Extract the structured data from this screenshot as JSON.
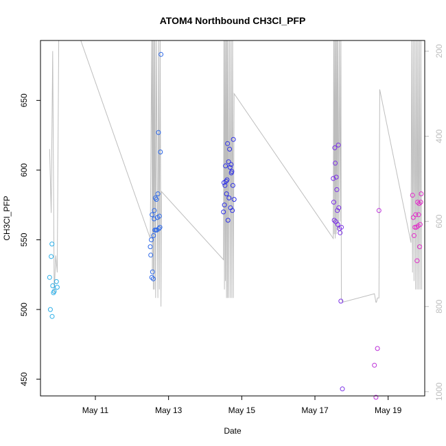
{
  "chart_data": {
    "type": "scatter",
    "title": "ATOM4 Northbound CH3Cl_PFP",
    "xlabel": "Date",
    "ylabel": "CH3Cl_PFP",
    "xlim": [
      "2016-05-09T12:00",
      "2016-05-20T00:00"
    ],
    "ylim": [
      438,
      693
    ],
    "x_ticks": [
      {
        "date": "2016-05-11",
        "label": "May 11"
      },
      {
        "date": "2016-05-13",
        "label": "May 13"
      },
      {
        "date": "2016-05-15",
        "label": "May 15"
      },
      {
        "date": "2016-05-17",
        "label": "May 17"
      },
      {
        "date": "2016-05-19",
        "label": "May 19"
      }
    ],
    "y_ticks": [
      450,
      500,
      550,
      600,
      650
    ],
    "y2_label": "",
    "y2_lim": [
      1010,
      175
    ],
    "y2_ticks": [
      200,
      400,
      600,
      800,
      1000
    ],
    "grid": false,
    "legend": "none",
    "colors": {
      "axis": "#000000",
      "altitude_line": "#bdbdbd",
      "right_axis": "#bdbdbd",
      "series_palette": [
        "#29aee8",
        "#2c68e8",
        "#2c2ee6",
        "#7a2ee6",
        "#bb2ed8",
        "#e02cc8"
      ]
    },
    "series": [
      {
        "color": "#29aee8",
        "points": [
          [
            "2016-05-09T18:00",
            523
          ],
          [
            "2016-05-09T18:30",
            500
          ],
          [
            "2016-05-09T19:00",
            538
          ],
          [
            "2016-05-09T19:30",
            547
          ],
          [
            "2016-05-09T19:40",
            495
          ],
          [
            "2016-05-09T20:00",
            517
          ],
          [
            "2016-05-09T20:30",
            512
          ],
          [
            "2016-05-09T21:00",
            513
          ],
          [
            "2016-05-09T22:30",
            520
          ],
          [
            "2016-05-09T23:00",
            516
          ]
        ]
      },
      {
        "color": "#2c68e8",
        "points": [
          [
            "2016-05-12T12:00",
            545
          ],
          [
            "2016-05-12T12:20",
            539
          ],
          [
            "2016-05-12T12:40",
            550
          ],
          [
            "2016-05-12T13:00",
            523
          ],
          [
            "2016-05-12T13:10",
            568
          ],
          [
            "2016-05-12T13:30",
            527
          ],
          [
            "2016-05-12T14:00",
            522
          ],
          [
            "2016-05-12T14:10",
            553
          ],
          [
            "2016-05-12T14:30",
            565
          ],
          [
            "2016-05-12T14:40",
            571
          ],
          [
            "2016-05-12T15:00",
            557
          ],
          [
            "2016-05-12T15:20",
            580
          ],
          [
            "2016-05-12T15:40",
            557
          ],
          [
            "2016-05-12T16:00",
            579
          ],
          [
            "2016-05-12T16:20",
            557
          ],
          [
            "2016-05-12T16:40",
            566
          ],
          [
            "2016-05-12T17:00",
            583
          ],
          [
            "2016-05-12T17:20",
            627
          ],
          [
            "2016-05-12T17:40",
            558
          ],
          [
            "2016-05-12T18:00",
            567
          ],
          [
            "2016-05-12T18:20",
            559
          ],
          [
            "2016-05-12T18:40",
            613
          ],
          [
            "2016-05-12T19:00",
            683
          ]
        ]
      },
      {
        "color": "#2c2ee6",
        "points": [
          [
            "2016-05-14T12:00",
            570
          ],
          [
            "2016-05-14T12:20",
            591
          ],
          [
            "2016-05-14T12:40",
            575
          ],
          [
            "2016-05-14T13:00",
            589
          ],
          [
            "2016-05-14T13:20",
            603
          ],
          [
            "2016-05-14T13:40",
            592
          ],
          [
            "2016-05-14T14:00",
            583
          ],
          [
            "2016-05-14T14:20",
            593
          ],
          [
            "2016-05-14T14:40",
            619
          ],
          [
            "2016-05-14T15:00",
            564
          ],
          [
            "2016-05-14T15:20",
            606
          ],
          [
            "2016-05-14T15:40",
            580
          ],
          [
            "2016-05-14T16:00",
            615
          ],
          [
            "2016-05-14T16:20",
            602
          ],
          [
            "2016-05-14T16:40",
            573
          ],
          [
            "2016-05-14T17:00",
            604
          ],
          [
            "2016-05-14T17:10",
            598
          ],
          [
            "2016-05-14T17:30",
            599
          ],
          [
            "2016-05-14T17:50",
            571
          ],
          [
            "2016-05-14T18:10",
            589
          ],
          [
            "2016-05-14T18:30",
            622
          ],
          [
            "2016-05-14T19:00",
            579
          ]
        ]
      },
      {
        "color": "#7a2ee6",
        "points": [
          [
            "2016-05-17T12:00",
            594
          ],
          [
            "2016-05-17T12:20",
            577
          ],
          [
            "2016-05-17T12:40",
            564
          ],
          [
            "2016-05-17T13:00",
            616
          ],
          [
            "2016-05-17T13:20",
            605
          ],
          [
            "2016-05-17T13:40",
            563
          ],
          [
            "2016-05-17T14:00",
            595
          ],
          [
            "2016-05-17T14:20",
            586
          ],
          [
            "2016-05-17T14:40",
            571
          ],
          [
            "2016-05-17T15:00",
            561
          ],
          [
            "2016-05-17T15:20",
            618
          ],
          [
            "2016-05-17T15:40",
            573
          ],
          [
            "2016-05-17T16:00",
            558
          ],
          [
            "2016-05-17T16:30",
            555
          ],
          [
            "2016-05-17T17:00",
            506
          ],
          [
            "2016-05-17T17:20",
            559
          ],
          [
            "2016-05-17T18:00",
            443
          ]
        ]
      },
      {
        "color": "#bb2ed8",
        "points": [
          [
            "2016-05-18T15:00",
            460
          ],
          [
            "2016-05-18T16:00",
            437
          ],
          [
            "2016-05-18T17:00",
            472
          ],
          [
            "2016-05-18T18:00",
            571
          ]
        ]
      },
      {
        "color": "#e02cc8",
        "points": [
          [
            "2016-05-19T16:00",
            582
          ],
          [
            "2016-05-19T16:30",
            566
          ],
          [
            "2016-05-19T17:00",
            553
          ],
          [
            "2016-05-19T17:30",
            559
          ],
          [
            "2016-05-19T18:00",
            568
          ],
          [
            "2016-05-19T18:30",
            559
          ],
          [
            "2016-05-19T19:00",
            535
          ],
          [
            "2016-05-19T19:20",
            577
          ],
          [
            "2016-05-19T19:40",
            560
          ],
          [
            "2016-05-19T20:00",
            568
          ],
          [
            "2016-05-19T20:20",
            576
          ],
          [
            "2016-05-19T20:40",
            545
          ],
          [
            "2016-05-19T21:00",
            561
          ],
          [
            "2016-05-19T21:20",
            577
          ],
          [
            "2016-05-19T21:40",
            583
          ]
        ]
      }
    ],
    "altitude_line": [
      [
        "2016-05-09T18:00",
        430
      ],
      [
        "2016-05-09T19:00",
        580
      ],
      [
        "2016-05-09T20:00",
        200
      ],
      [
        "2016-05-09T21:00",
        770
      ],
      [
        "2016-05-09T22:00",
        680
      ],
      [
        "2016-05-09T23:00",
        720
      ],
      [
        "2016-05-10T00:00",
        150
      ],
      [
        "2016-05-10T12:00",
        150
      ],
      [
        "2016-05-12T12:00",
        640
      ],
      [
        "2016-05-12T13:00",
        150
      ],
      [
        "2016-05-12T13:20",
        720
      ],
      [
        "2016-05-12T13:40",
        150
      ],
      [
        "2016-05-12T14:00",
        760
      ],
      [
        "2016-05-12T14:20",
        150
      ],
      [
        "2016-05-12T14:40",
        760
      ],
      [
        "2016-05-12T15:00",
        150
      ],
      [
        "2016-05-12T15:30",
        780
      ],
      [
        "2016-05-12T16:00",
        150
      ],
      [
        "2016-05-12T17:00",
        780
      ],
      [
        "2016-05-12T17:30",
        150
      ],
      [
        "2016-05-12T18:00",
        760
      ],
      [
        "2016-05-12T18:30",
        150
      ],
      [
        "2016-05-12T19:00",
        800
      ],
      [
        "2016-05-12T19:20",
        530
      ],
      [
        "2016-05-14T12:00",
        690
      ],
      [
        "2016-05-14T12:20",
        150
      ],
      [
        "2016-05-14T12:40",
        760
      ],
      [
        "2016-05-14T13:00",
        150
      ],
      [
        "2016-05-14T13:20",
        740
      ],
      [
        "2016-05-14T13:40",
        150
      ],
      [
        "2016-05-14T14:00",
        780
      ],
      [
        "2016-05-14T14:20",
        150
      ],
      [
        "2016-05-14T14:40",
        780
      ],
      [
        "2016-05-14T15:00",
        150
      ],
      [
        "2016-05-14T15:30",
        780
      ],
      [
        "2016-05-14T16:00",
        150
      ],
      [
        "2016-05-14T16:30",
        780
      ],
      [
        "2016-05-14T17:00",
        150
      ],
      [
        "2016-05-14T17:30",
        780
      ],
      [
        "2016-05-14T18:00",
        150
      ],
      [
        "2016-05-14T18:30",
        780
      ],
      [
        "2016-05-14T19:00",
        300
      ],
      [
        "2016-05-17T12:00",
        640
      ],
      [
        "2016-05-17T12:20",
        150
      ],
      [
        "2016-05-17T12:40",
        630
      ],
      [
        "2016-05-17T13:00",
        150
      ],
      [
        "2016-05-17T13:20",
        640
      ],
      [
        "2016-05-17T13:40",
        150
      ],
      [
        "2016-05-17T14:00",
        630
      ],
      [
        "2016-05-17T14:20",
        150
      ],
      [
        "2016-05-17T14:40",
        620
      ],
      [
        "2016-05-17T15:00",
        150
      ],
      [
        "2016-05-17T15:30",
        620
      ],
      [
        "2016-05-17T16:00",
        150
      ],
      [
        "2016-05-17T16:30",
        600
      ],
      [
        "2016-05-17T17:00",
        150
      ],
      [
        "2016-05-17T17:20",
        780
      ],
      [
        "2016-05-17T18:00",
        790
      ],
      [
        "2016-05-18T15:00",
        770
      ],
      [
        "2016-05-18T16:00",
        790
      ],
      [
        "2016-05-18T16:20",
        790
      ],
      [
        "2016-05-18T17:00",
        780
      ],
      [
        "2016-05-18T18:00",
        780
      ],
      [
        "2016-05-18T18:30",
        290
      ],
      [
        "2016-05-19T15:00",
        650
      ],
      [
        "2016-05-19T15:30",
        150
      ],
      [
        "2016-05-19T16:00",
        720
      ],
      [
        "2016-05-19T16:30",
        150
      ],
      [
        "2016-05-19T17:00",
        740
      ],
      [
        "2016-05-19T17:30",
        150
      ],
      [
        "2016-05-19T18:00",
        760
      ],
      [
        "2016-05-19T18:30",
        150
      ],
      [
        "2016-05-19T19:00",
        760
      ],
      [
        "2016-05-19T19:30",
        150
      ],
      [
        "2016-05-19T20:00",
        760
      ],
      [
        "2016-05-19T20:30",
        150
      ],
      [
        "2016-05-19T21:00",
        760
      ],
      [
        "2016-05-19T21:30",
        150
      ],
      [
        "2016-05-19T22:00",
        760
      ]
    ]
  }
}
